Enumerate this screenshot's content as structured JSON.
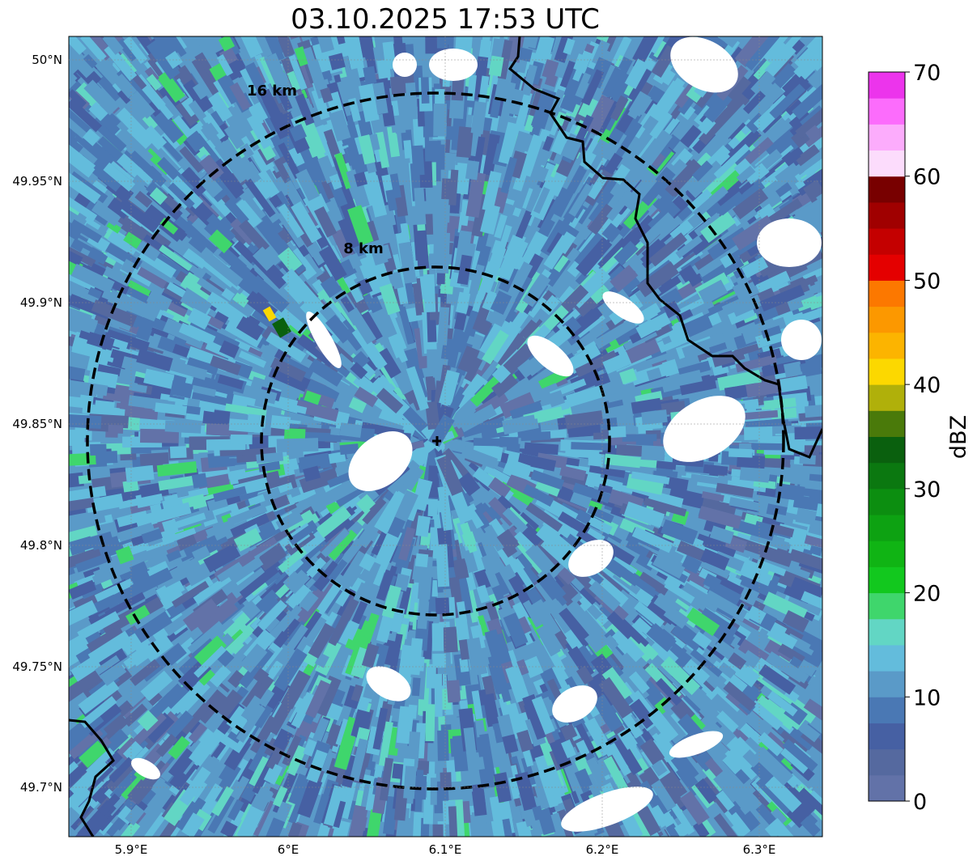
{
  "title": "03.10.2025 17:53 UTC",
  "map": {
    "lat_ticks": [
      "50°N",
      "49.95°N",
      "49.9°N",
      "49.85°N",
      "49.8°N",
      "49.75°N",
      "49.7°N"
    ],
    "lon_ticks": [
      "5.9°E",
      "6°E",
      "6.1°E",
      "6.2°E",
      "6.3°E"
    ],
    "range_rings": [
      {
        "label": "16 km",
        "radius_km": 16
      },
      {
        "label": "8 km",
        "radius_km": 8
      }
    ],
    "radar_site_marker": "cross-icon"
  },
  "colorbar": {
    "label": "dBZ",
    "min": 0,
    "max": 70,
    "step": 2.5,
    "ticks": [
      "0",
      "10",
      "20",
      "30",
      "40",
      "50",
      "60",
      "70"
    ],
    "colors": [
      "#6272a8",
      "#55699f",
      "#4660a3",
      "#4a78b4",
      "#5a9ac8",
      "#63bcdc",
      "#62d6c4",
      "#3fd66c",
      "#12c81e",
      "#10b414",
      "#0da212",
      "#0c8e10",
      "#0b7810",
      "#0a600e",
      "#4a7a0a",
      "#b0b00a",
      "#fcd800",
      "#fcb400",
      "#fc9800",
      "#fc7800",
      "#e40000",
      "#c40000",
      "#a00000",
      "#780000",
      "#fcdcfc",
      "#fcacfc",
      "#fc6cfc",
      "#ec34ec"
    ]
  }
}
